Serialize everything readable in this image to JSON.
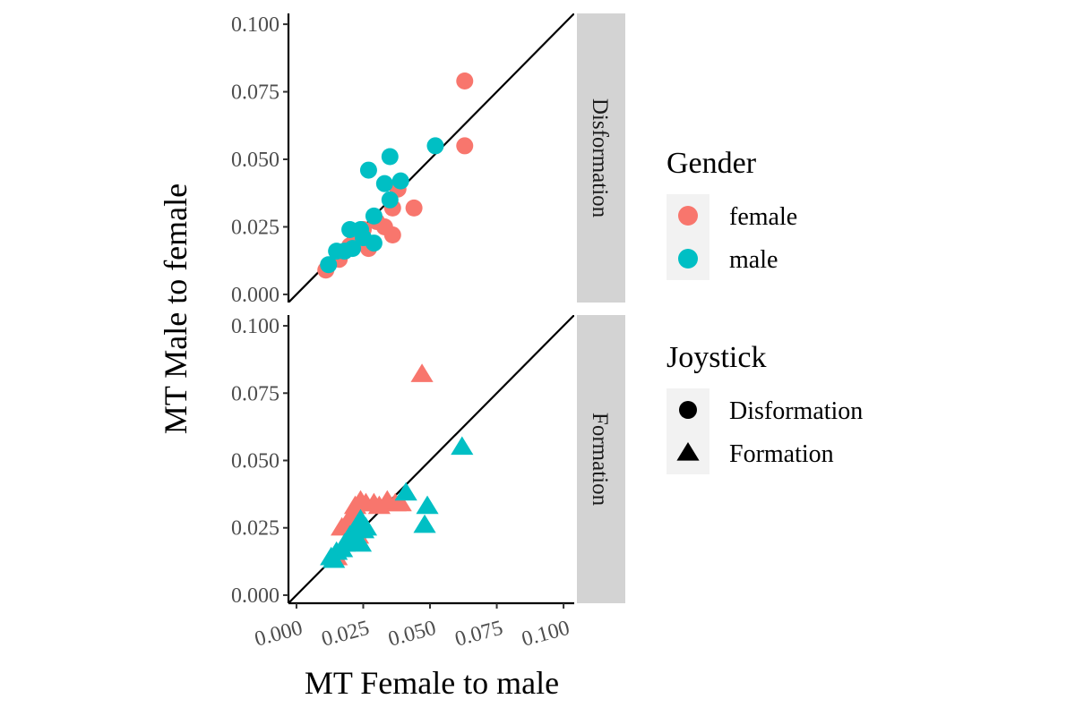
{
  "chart_data": {
    "type": "scatter",
    "xlabel": "MT Female to male",
    "ylabel": "MT Male to female",
    "xlim": [
      -0.003,
      0.104
    ],
    "ylim": [
      -0.003,
      0.104
    ],
    "xticks": [
      0.0,
      0.025,
      0.05,
      0.075,
      0.1
    ],
    "xtick_labels": [
      "0.000",
      "0.025",
      "0.050",
      "0.075",
      "0.100"
    ],
    "yticks": [
      0.0,
      0.025,
      0.05,
      0.075,
      0.1
    ],
    "ytick_labels": [
      "0.000",
      "0.025",
      "0.050",
      "0.075",
      "0.100"
    ],
    "reference_line": "y = x",
    "grid": false,
    "legend_placement": "right",
    "colors": {
      "female": "#F8766D",
      "male": "#00BFC4"
    },
    "legends": [
      {
        "title": "Gender",
        "entries": [
          "female",
          "male"
        ]
      },
      {
        "title": "Joystick",
        "entries": [
          "Disformation",
          "Formation"
        ]
      }
    ],
    "panels": [
      {
        "strip": "Disformation",
        "shape": "circle",
        "series": [
          {
            "name": "female",
            "points": [
              [
                0.063,
                0.079
              ],
              [
                0.063,
                0.055
              ],
              [
                0.044,
                0.032
              ],
              [
                0.038,
                0.039
              ],
              [
                0.036,
                0.032
              ],
              [
                0.036,
                0.022
              ],
              [
                0.033,
                0.025
              ],
              [
                0.03,
                0.027
              ],
              [
                0.027,
                0.017
              ],
              [
                0.025,
                0.024
              ],
              [
                0.022,
                0.021
              ],
              [
                0.02,
                0.018
              ],
              [
                0.018,
                0.016
              ],
              [
                0.016,
                0.013
              ],
              [
                0.011,
                0.009
              ]
            ]
          },
          {
            "name": "male",
            "points": [
              [
                0.052,
                0.055
              ],
              [
                0.035,
                0.051
              ],
              [
                0.027,
                0.046
              ],
              [
                0.033,
                0.041
              ],
              [
                0.039,
                0.042
              ],
              [
                0.035,
                0.035
              ],
              [
                0.029,
                0.029
              ],
              [
                0.029,
                0.019
              ],
              [
                0.024,
                0.024
              ],
              [
                0.02,
                0.024
              ],
              [
                0.021,
                0.017
              ],
              [
                0.018,
                0.016
              ],
              [
                0.015,
                0.016
              ],
              [
                0.012,
                0.011
              ],
              [
                0.025,
                0.021
              ]
            ]
          }
        ]
      },
      {
        "strip": "Formation",
        "shape": "triangle",
        "series": [
          {
            "name": "female",
            "points": [
              [
                0.047,
                0.082
              ],
              [
                0.039,
                0.034
              ],
              [
                0.037,
                0.034
              ],
              [
                0.034,
                0.035
              ],
              [
                0.031,
                0.033
              ],
              [
                0.029,
                0.034
              ],
              [
                0.026,
                0.034
              ],
              [
                0.024,
                0.035
              ],
              [
                0.022,
                0.033
              ],
              [
                0.021,
                0.03
              ],
              [
                0.019,
                0.027
              ],
              [
                0.017,
                0.025
              ],
              [
                0.023,
                0.022
              ],
              [
                0.015,
                0.014
              ]
            ]
          },
          {
            "name": "male",
            "points": [
              [
                0.062,
                0.055
              ],
              [
                0.041,
                0.038
              ],
              [
                0.049,
                0.033
              ],
              [
                0.048,
                0.026
              ],
              [
                0.026,
                0.025
              ],
              [
                0.024,
                0.028
              ],
              [
                0.023,
                0.026
              ],
              [
                0.022,
                0.024
              ],
              [
                0.02,
                0.022
              ],
              [
                0.019,
                0.02
              ],
              [
                0.018,
                0.019
              ],
              [
                0.017,
                0.017
              ],
              [
                0.015,
                0.016
              ],
              [
                0.013,
                0.014
              ],
              [
                0.014,
                0.013
              ],
              [
                0.024,
                0.019
              ],
              [
                0.021,
                0.021
              ],
              [
                0.025,
                0.024
              ]
            ]
          }
        ]
      }
    ]
  }
}
